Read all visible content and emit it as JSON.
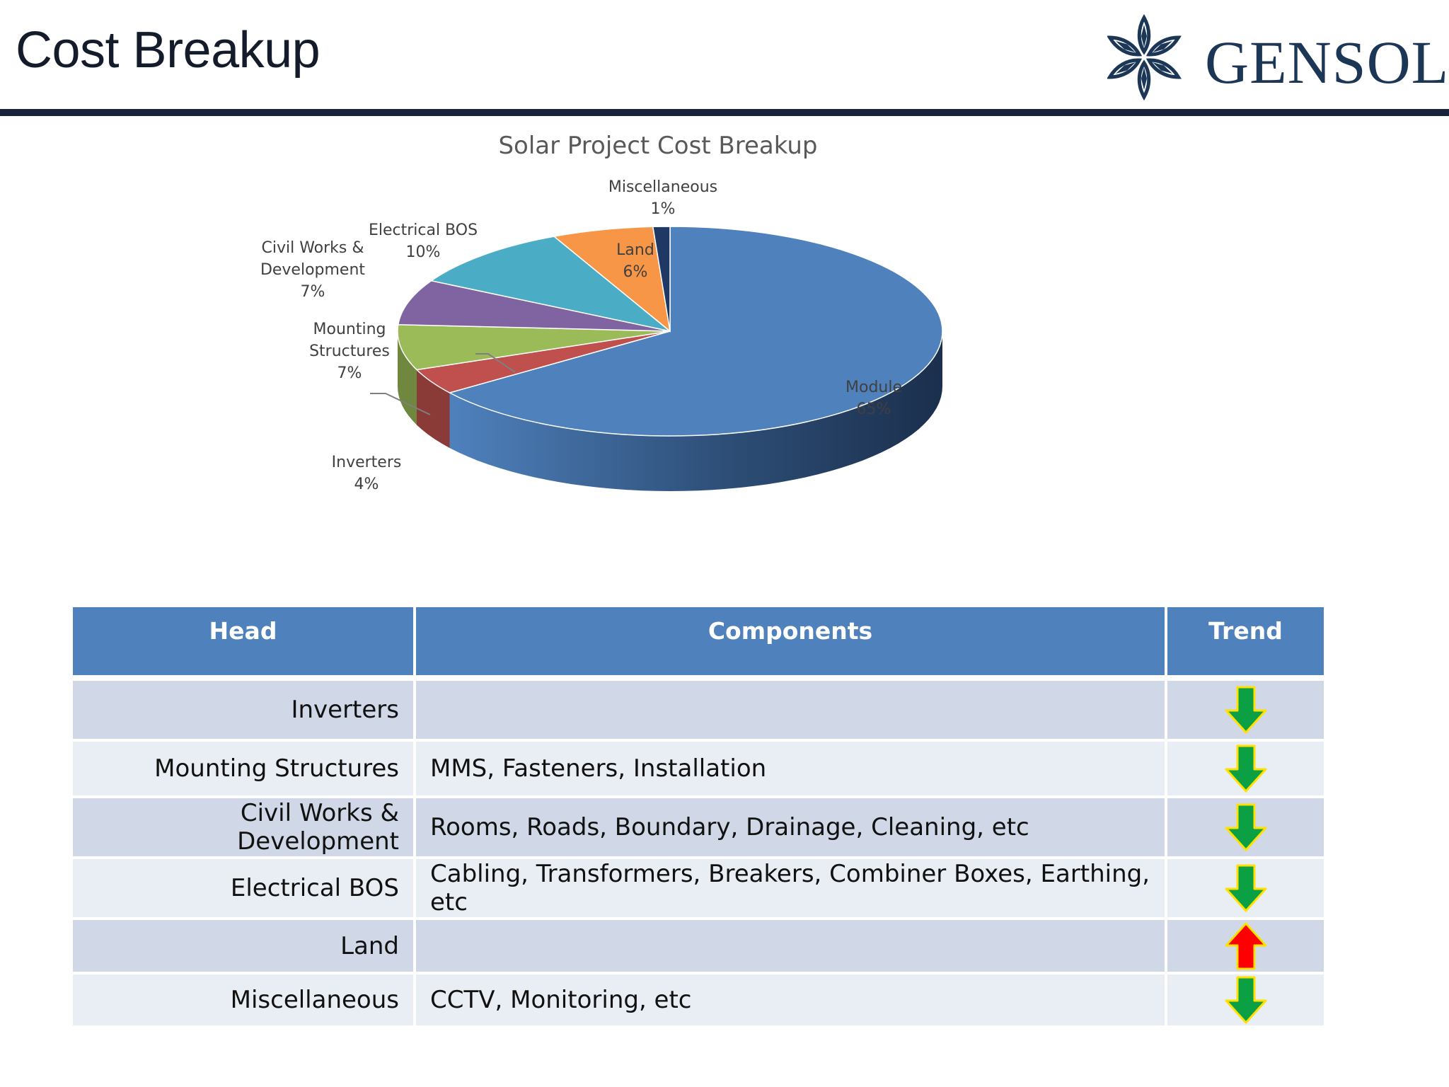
{
  "header": {
    "title": "Cost Breakup",
    "logo_text": "GENSOL"
  },
  "colors": {
    "header_bar": "#16233a",
    "table_header": "#4f81bd",
    "row_odd": "#d0d8e8",
    "row_even": "#e9edf4",
    "trend_down": "#0aa043",
    "trend_up": "#ff0000",
    "arrow_outline": "#ffe000"
  },
  "chart_data": {
    "type": "pie",
    "style": "3d",
    "title": "Solar Project Cost Breakup",
    "categories": [
      "Module",
      "Inverters",
      "Mounting Structures",
      "Civil Works & Development",
      "Electrical BOS",
      "Land",
      "Miscellaneous"
    ],
    "values": [
      65,
      4,
      7,
      7,
      10,
      6,
      1
    ],
    "unit": "%",
    "labels": [
      {
        "name": "Module",
        "lines": [
          "Module",
          "65%"
        ]
      },
      {
        "name": "Inverters",
        "lines": [
          "Inverters",
          "4%"
        ]
      },
      {
        "name": "Mounting Structures",
        "lines": [
          "Mounting",
          "Structures",
          "7%"
        ]
      },
      {
        "name": "Civil Works & Development",
        "lines": [
          "Civil Works &",
          "Development",
          "7%"
        ]
      },
      {
        "name": "Electrical BOS",
        "lines": [
          "Electrical  BOS",
          "10%"
        ]
      },
      {
        "name": "Land",
        "lines": [
          "Land",
          "6%"
        ]
      },
      {
        "name": "Miscellaneous",
        "lines": [
          "Miscellaneous",
          "1%"
        ]
      }
    ],
    "colors": [
      "#4f81bd",
      "#c0504d",
      "#9bbb59",
      "#8064a2",
      "#4bacc6",
      "#f79646",
      "#1f3864"
    ],
    "legend": "none"
  },
  "table": {
    "headers": [
      "Head",
      "Components",
      "Trend"
    ],
    "rows": [
      {
        "head": "Inverters",
        "components": "",
        "trend": "down"
      },
      {
        "head": "Mounting Structures",
        "components": "MMS, Fasteners, Installation",
        "trend": "down"
      },
      {
        "head": "Civil Works & Development",
        "components": "Rooms, Roads, Boundary, Drainage, Cleaning, etc",
        "trend": "down"
      },
      {
        "head": "Electrical BOS",
        "components": "Cabling, Transformers, Breakers, Combiner Boxes, Earthing, etc",
        "trend": "down"
      },
      {
        "head": "Land",
        "components": "",
        "trend": "up"
      },
      {
        "head": "Miscellaneous",
        "components": "CCTV, Monitoring, etc",
        "trend": "down"
      }
    ]
  }
}
